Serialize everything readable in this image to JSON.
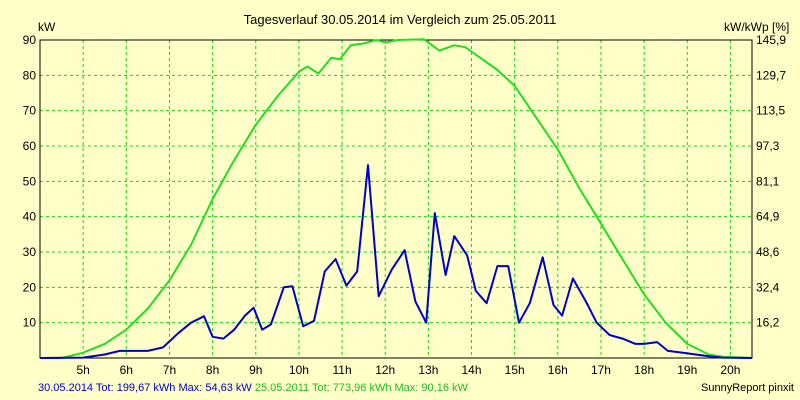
{
  "chart_data": {
    "type": "line",
    "title": "Tagesverlauf 30.05.2014 im Vergleich zum 25.05.2011",
    "ylabel_left": "kW",
    "ylabel_right": "kW/kWp [%]",
    "ylim": [
      0,
      90
    ],
    "yticks_left": [
      "10",
      "20",
      "30",
      "40",
      "50",
      "60",
      "70",
      "80",
      "90"
    ],
    "yticks_right": [
      "16,2",
      "32,4",
      "48,6",
      "64,9",
      "81,1",
      "97,3",
      "113,5",
      "129,7",
      "145,9"
    ],
    "xlim": [
      4.0,
      20.5
    ],
    "xticks": [
      "5h",
      "6h",
      "7h",
      "8h",
      "9h",
      "10h",
      "11h",
      "12h",
      "13h",
      "14h",
      "15h",
      "16h",
      "17h",
      "18h",
      "19h",
      "20h"
    ],
    "grid": true,
    "series": [
      {
        "name": "30.05.2014",
        "color": "#0000cc",
        "points": [
          [
            4.0,
            0.0
          ],
          [
            5.0,
            0.1
          ],
          [
            5.5,
            1.0
          ],
          [
            5.85,
            2.0
          ],
          [
            6.25,
            2.0
          ],
          [
            6.5,
            2.0
          ],
          [
            6.85,
            3.0
          ],
          [
            7.2,
            7.0
          ],
          [
            7.5,
            10.0
          ],
          [
            7.8,
            11.8
          ],
          [
            8.0,
            6.0
          ],
          [
            8.25,
            5.5
          ],
          [
            8.5,
            8.0
          ],
          [
            8.75,
            12.0
          ],
          [
            8.95,
            14.2
          ],
          [
            9.15,
            8.0
          ],
          [
            9.35,
            9.5
          ],
          [
            9.65,
            20.0
          ],
          [
            9.85,
            20.3
          ],
          [
            10.1,
            9.0
          ],
          [
            10.35,
            10.5
          ],
          [
            10.6,
            24.5
          ],
          [
            10.85,
            28.0
          ],
          [
            11.1,
            20.5
          ],
          [
            11.35,
            24.5
          ],
          [
            11.6,
            54.6
          ],
          [
            11.85,
            17.5
          ],
          [
            12.15,
            25.0
          ],
          [
            12.45,
            30.5
          ],
          [
            12.7,
            16.0
          ],
          [
            12.95,
            10.0
          ],
          [
            13.15,
            41.0
          ],
          [
            13.4,
            23.5
          ],
          [
            13.6,
            34.5
          ],
          [
            13.9,
            29.0
          ],
          [
            14.1,
            19.0
          ],
          [
            14.35,
            15.5
          ],
          [
            14.6,
            26.0
          ],
          [
            14.85,
            26.0
          ],
          [
            15.1,
            10.0
          ],
          [
            15.35,
            15.5
          ],
          [
            15.65,
            28.5
          ],
          [
            15.9,
            15.0
          ],
          [
            16.1,
            12.0
          ],
          [
            16.35,
            22.5
          ],
          [
            16.65,
            16.0
          ],
          [
            16.9,
            10.0
          ],
          [
            17.2,
            6.5
          ],
          [
            17.5,
            5.5
          ],
          [
            17.8,
            4.0
          ],
          [
            18.0,
            4.0
          ],
          [
            18.3,
            4.5
          ],
          [
            18.55,
            2.0
          ],
          [
            18.9,
            1.5
          ],
          [
            19.2,
            1.0
          ],
          [
            19.5,
            0.5
          ],
          [
            19.8,
            0.1
          ],
          [
            20.5,
            0.0
          ]
        ]
      },
      {
        "name": "25.05.2011",
        "color": "#22dd22",
        "points": [
          [
            4.0,
            0.0
          ],
          [
            4.5,
            0.0
          ],
          [
            5.0,
            1.5
          ],
          [
            5.5,
            4.0
          ],
          [
            6.0,
            8.0
          ],
          [
            6.5,
            14.0
          ],
          [
            7.0,
            22.0
          ],
          [
            7.5,
            32.0
          ],
          [
            8.0,
            45.0
          ],
          [
            8.5,
            56.0
          ],
          [
            9.0,
            66.0
          ],
          [
            9.5,
            74.0
          ],
          [
            10.0,
            81.0
          ],
          [
            10.2,
            82.5
          ],
          [
            10.45,
            80.5
          ],
          [
            10.75,
            85.0
          ],
          [
            10.95,
            84.5
          ],
          [
            11.2,
            88.5
          ],
          [
            11.5,
            89.0
          ],
          [
            11.8,
            90.0
          ],
          [
            12.0,
            89.3
          ],
          [
            12.3,
            90.0
          ],
          [
            12.9,
            90.2
          ],
          [
            13.25,
            87.0
          ],
          [
            13.6,
            88.5
          ],
          [
            13.85,
            88.0
          ],
          [
            14.2,
            85.0
          ],
          [
            14.6,
            81.5
          ],
          [
            15.0,
            77.0
          ],
          [
            15.5,
            68.0
          ],
          [
            16.0,
            59.0
          ],
          [
            16.5,
            48.0
          ],
          [
            17.0,
            38.0
          ],
          [
            17.5,
            28.0
          ],
          [
            18.0,
            18.0
          ],
          [
            18.5,
            10.0
          ],
          [
            19.0,
            4.0
          ],
          [
            19.5,
            1.0
          ],
          [
            19.85,
            0.3
          ],
          [
            20.5,
            0.0
          ]
        ]
      }
    ]
  },
  "footer": {
    "legend_a": "30.05.2014 Tot: 199,67 kWh Max: 54,63 kW",
    "legend_b": "25.05.2011 Tot: 773,96 kWh Max: 90,16 kW",
    "credit": "SunnyReport pinxit"
  }
}
